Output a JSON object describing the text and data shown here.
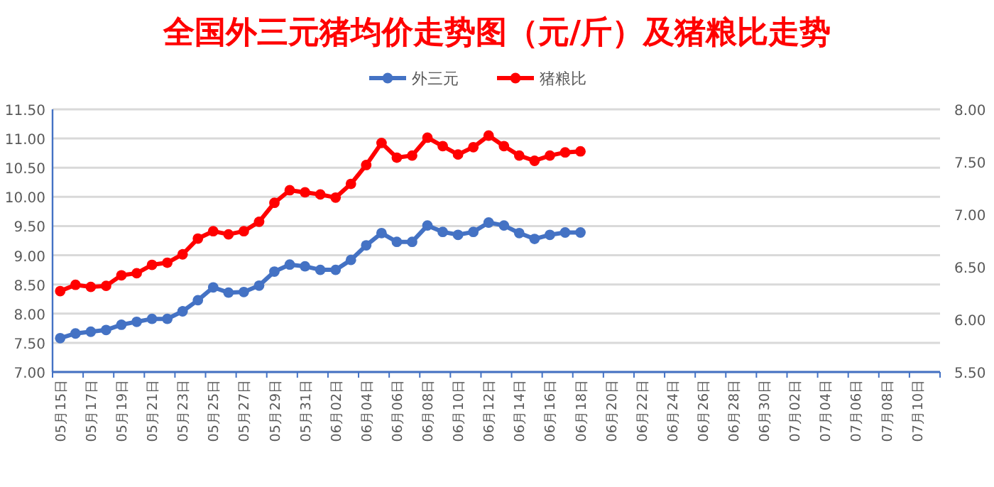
{
  "chart_data": {
    "type": "line",
    "title": "全国外三元猪均价走势图（元/斤）及猪粮比走势",
    "categories": [
      "05月15日",
      null,
      "05月17日",
      null,
      "05月19日",
      null,
      "05月21日",
      null,
      "05月23日",
      null,
      "05月25日",
      null,
      "05月27日",
      null,
      "05月29日",
      null,
      "05月31日",
      null,
      "06月02日",
      null,
      "06月04日",
      null,
      "06月06日",
      null,
      "06月08日",
      null,
      "06月10日",
      null,
      "06月12日",
      null,
      "06月14日",
      null,
      "06月16日",
      null,
      "06月18日",
      null,
      "06月20日",
      null,
      "06月22日",
      null,
      "06月24日",
      null,
      "06月26日",
      null,
      "06月28日",
      null,
      "06月30日",
      null,
      "07月02日",
      null,
      "07月04日",
      null,
      "07月06日",
      null,
      "07月08日",
      null,
      "07月10日",
      null
    ],
    "series": [
      {
        "name": "外三元",
        "color": "#4472c4",
        "values": [
          7.58,
          7.66,
          7.69,
          7.72,
          7.81,
          7.86,
          7.91,
          7.91,
          8.04,
          8.23,
          8.45,
          8.36,
          8.37,
          8.48,
          8.72,
          8.84,
          8.81,
          8.75,
          8.75,
          8.92,
          9.17,
          9.38,
          9.23,
          9.23,
          9.51,
          9.4,
          9.35,
          9.4,
          9.56,
          9.51,
          9.38,
          9.28,
          9.35,
          9.39,
          9.39,
          null,
          null,
          null,
          null,
          null,
          null,
          null,
          null,
          null,
          null,
          null,
          null,
          null,
          null,
          null,
          null,
          null,
          null,
          null,
          null,
          null,
          null,
          null
        ]
      },
      {
        "name": "猪粮比",
        "color": "#ff0000",
        "axis": "y2",
        "values": [
          6.27,
          6.33,
          6.31,
          6.32,
          6.42,
          6.44,
          6.52,
          6.54,
          6.62,
          6.77,
          6.84,
          6.81,
          6.84,
          6.93,
          7.11,
          7.23,
          7.21,
          7.19,
          7.16,
          7.29,
          7.47,
          7.68,
          7.54,
          7.56,
          7.73,
          7.65,
          7.57,
          7.64,
          7.75,
          7.65,
          7.56,
          7.51,
          7.56,
          7.59,
          7.6,
          null,
          null,
          null,
          null,
          null,
          null,
          null,
          null,
          null,
          null,
          null,
          null,
          null,
          null,
          null,
          null,
          null,
          null,
          null,
          null,
          null,
          null,
          null
        ]
      }
    ],
    "ylim": [
      7,
      11.5
    ],
    "yticks": [
      {
        "value": 7,
        "label": "7.00"
      },
      {
        "value": 7.5,
        "label": "7.50"
      },
      {
        "value": 8,
        "label": "8.00"
      },
      {
        "value": 8.5,
        "label": "8.50"
      },
      {
        "value": 9,
        "label": "9.00"
      },
      {
        "value": 9.5,
        "label": "9.50"
      },
      {
        "value": 10,
        "label": "10.00"
      },
      {
        "value": 10.5,
        "label": "10.50"
      },
      {
        "value": 11,
        "label": "11.00"
      },
      {
        "value": 11.5,
        "label": "11.50"
      }
    ],
    "y2lim": [
      5.5,
      8
    ],
    "y2ticks": [
      {
        "value": 5.5,
        "label": "5.50"
      },
      {
        "value": 6,
        "label": "6.00"
      },
      {
        "value": 6.5,
        "label": "6.50"
      },
      {
        "value": 7,
        "label": "7.00"
      },
      {
        "value": 7.5,
        "label": "7.50"
      },
      {
        "value": 8,
        "label": "8.00"
      }
    ],
    "grid": "y",
    "legend": "top",
    "marker": "circle"
  }
}
